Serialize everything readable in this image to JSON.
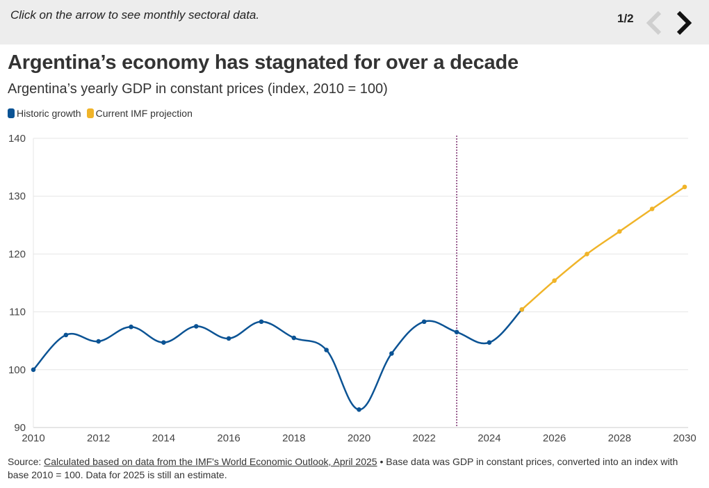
{
  "header": {
    "instruction": "Click on the arrow to see monthly sectoral data.",
    "pager": "1/2",
    "prev_icon": "chevron-left-icon",
    "next_icon": "chevron-right-icon"
  },
  "title": "Argentina’s economy has stagnated for over a decade",
  "subtitle": "Argentina’s yearly GDP in constant prices (index, 2010 = 100)",
  "legend": [
    {
      "label": "Historic growth",
      "color": "#0b5394"
    },
    {
      "label": "Current IMF projection",
      "color": "#f0b429"
    }
  ],
  "source": {
    "prefix": "Source: ",
    "link_text": "Calculated based on data from the IMF's World Economic Outlook, April 2025",
    "suffix": " • Base data was GDP in constant prices, converted into an index with base 2010 = 100. Data for 2025 is still an estimate."
  },
  "chart_data": {
    "type": "line",
    "title": "Argentina’s economy has stagnated for over a decade",
    "xlabel": "",
    "ylabel": "",
    "xlim": [
      2010,
      2030
    ],
    "ylim": [
      90,
      140
    ],
    "x_ticks": [
      2010,
      2012,
      2014,
      2016,
      2018,
      2020,
      2022,
      2024,
      2026,
      2028,
      2030
    ],
    "y_ticks": [
      90,
      100,
      110,
      120,
      130,
      140
    ],
    "grid": true,
    "reference_line_x": 2023,
    "series": [
      {
        "name": "Historic growth",
        "color": "#0b5394",
        "x": [
          2010,
          2011,
          2012,
          2013,
          2014,
          2015,
          2016,
          2017,
          2018,
          2019,
          2020,
          2021,
          2022,
          2023,
          2024,
          2025
        ],
        "values": [
          100.0,
          106.0,
          104.9,
          107.4,
          104.7,
          107.5,
          105.4,
          108.3,
          105.5,
          103.4,
          93.1,
          102.8,
          108.3,
          106.5,
          104.7,
          110.4
        ]
      },
      {
        "name": "Current IMF projection",
        "color": "#f0b429",
        "x": [
          2025,
          2026,
          2027,
          2028,
          2029,
          2030
        ],
        "values": [
          110.4,
          115.4,
          120.0,
          123.9,
          127.8,
          131.6
        ]
      }
    ]
  }
}
